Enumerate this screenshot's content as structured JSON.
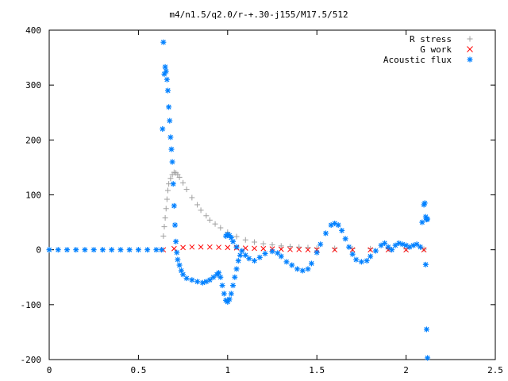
{
  "chart_data": {
    "type": "scatter",
    "title": "m4/n1.5/q2.0/r-+.30-j155/M17.5/512",
    "xlabel": "",
    "ylabel": "",
    "xlim": [
      0,
      2.5
    ],
    "ylim": [
      -200,
      400
    ],
    "xticks": [
      "0",
      "0.5",
      "1",
      "1.5",
      "2",
      "2.5"
    ],
    "yticks": [
      "400",
      "300",
      "200",
      "100",
      "0",
      "-100",
      "-200"
    ],
    "grid": false,
    "legend_position": "top-right",
    "series": [
      {
        "name": "R stress",
        "marker": "+",
        "color": "#a0a0a0",
        "points": [
          [
            0.64,
            25
          ],
          [
            0.645,
            42
          ],
          [
            0.65,
            58
          ],
          [
            0.655,
            75
          ],
          [
            0.66,
            92
          ],
          [
            0.665,
            108
          ],
          [
            0.67,
            120
          ],
          [
            0.68,
            130
          ],
          [
            0.69,
            137
          ],
          [
            0.7,
            141
          ],
          [
            0.71,
            140
          ],
          [
            0.72,
            137
          ],
          [
            0.73,
            132
          ],
          [
            0.75,
            122
          ],
          [
            0.77,
            110
          ],
          [
            0.8,
            95
          ],
          [
            0.83,
            82
          ],
          [
            0.85,
            72
          ],
          [
            0.88,
            62
          ],
          [
            0.9,
            54
          ],
          [
            0.93,
            47
          ],
          [
            0.96,
            40
          ],
          [
            1.0,
            32
          ],
          [
            1.05,
            24
          ],
          [
            1.1,
            18
          ],
          [
            1.15,
            14
          ],
          [
            1.2,
            11
          ],
          [
            1.25,
            9
          ],
          [
            1.3,
            7
          ],
          [
            1.35,
            6
          ],
          [
            1.4,
            5
          ],
          [
            1.45,
            4
          ],
          [
            1.5,
            3
          ],
          [
            1.6,
            2.5
          ],
          [
            1.7,
            2
          ],
          [
            1.8,
            2
          ],
          [
            1.9,
            1.5
          ],
          [
            2.0,
            1.5
          ],
          [
            2.1,
            1
          ]
        ]
      },
      {
        "name": "G work",
        "marker": "x",
        "color": "#ff0000",
        "points": [
          [
            0.64,
            0
          ],
          [
            0.7,
            2
          ],
          [
            0.75,
            4
          ],
          [
            0.8,
            5
          ],
          [
            0.85,
            5
          ],
          [
            0.9,
            5
          ],
          [
            0.95,
            4.5
          ],
          [
            1.0,
            4
          ],
          [
            1.05,
            3.5
          ],
          [
            1.1,
            3
          ],
          [
            1.15,
            2.5
          ],
          [
            1.2,
            2
          ],
          [
            1.25,
            1.5
          ],
          [
            1.3,
            1
          ],
          [
            1.35,
            0.5
          ],
          [
            1.4,
            0.5
          ],
          [
            1.45,
            0
          ],
          [
            1.5,
            0
          ],
          [
            1.6,
            0
          ],
          [
            1.7,
            0
          ],
          [
            1.8,
            0
          ],
          [
            1.9,
            0
          ],
          [
            2.0,
            0
          ],
          [
            2.1,
            0
          ]
        ]
      },
      {
        "name": "Acoustic flux",
        "marker": "*",
        "color": "#0080ff",
        "points": [
          [
            0.0,
            0
          ],
          [
            0.05,
            0
          ],
          [
            0.1,
            0
          ],
          [
            0.15,
            0
          ],
          [
            0.2,
            0
          ],
          [
            0.25,
            0
          ],
          [
            0.3,
            0
          ],
          [
            0.35,
            0
          ],
          [
            0.4,
            0
          ],
          [
            0.45,
            0
          ],
          [
            0.5,
            0
          ],
          [
            0.55,
            0
          ],
          [
            0.6,
            0
          ],
          [
            0.63,
            0
          ],
          [
            0.635,
            220
          ],
          [
            0.64,
            378
          ],
          [
            0.645,
            320
          ],
          [
            0.65,
            333
          ],
          [
            0.655,
            325
          ],
          [
            0.66,
            310
          ],
          [
            0.665,
            290
          ],
          [
            0.67,
            260
          ],
          [
            0.675,
            235
          ],
          [
            0.68,
            205
          ],
          [
            0.685,
            183
          ],
          [
            0.69,
            160
          ],
          [
            0.695,
            120
          ],
          [
            0.7,
            80
          ],
          [
            0.705,
            45
          ],
          [
            0.71,
            15
          ],
          [
            0.715,
            -5
          ],
          [
            0.72,
            -18
          ],
          [
            0.73,
            -28
          ],
          [
            0.74,
            -38
          ],
          [
            0.75,
            -45
          ],
          [
            0.77,
            -52
          ],
          [
            0.8,
            -55
          ],
          [
            0.83,
            -58
          ],
          [
            0.86,
            -60
          ],
          [
            0.88,
            -58
          ],
          [
            0.9,
            -55
          ],
          [
            0.92,
            -50
          ],
          [
            0.94,
            -45
          ],
          [
            0.95,
            -42
          ],
          [
            0.96,
            -50
          ],
          [
            0.97,
            -65
          ],
          [
            0.98,
            -80
          ],
          [
            0.99,
            -92
          ],
          [
            1.0,
            -95
          ],
          [
            1.01,
            -90
          ],
          [
            1.02,
            -80
          ],
          [
            1.03,
            -65
          ],
          [
            1.04,
            -50
          ],
          [
            1.05,
            -35
          ],
          [
            1.06,
            -20
          ],
          [
            1.07,
            -10
          ],
          [
            0.99,
            25
          ],
          [
            1.0,
            28
          ],
          [
            1.01,
            26
          ],
          [
            1.02,
            22
          ],
          [
            1.03,
            15
          ],
          [
            1.05,
            5
          ],
          [
            1.08,
            -2
          ],
          [
            1.1,
            -10
          ],
          [
            1.12,
            -16
          ],
          [
            1.15,
            -20
          ],
          [
            1.18,
            -14
          ],
          [
            1.21,
            -7
          ],
          [
            1.25,
            -3
          ],
          [
            1.28,
            -6
          ],
          [
            1.3,
            -12
          ],
          [
            1.33,
            -22
          ],
          [
            1.36,
            -28
          ],
          [
            1.39,
            -35
          ],
          [
            1.42,
            -38
          ],
          [
            1.45,
            -35
          ],
          [
            1.47,
            -25
          ],
          [
            1.5,
            -5
          ],
          [
            1.52,
            10
          ],
          [
            1.55,
            30
          ],
          [
            1.58,
            45
          ],
          [
            1.6,
            48
          ],
          [
            1.62,
            45
          ],
          [
            1.64,
            35
          ],
          [
            1.66,
            20
          ],
          [
            1.68,
            5
          ],
          [
            1.7,
            -8
          ],
          [
            1.72,
            -18
          ],
          [
            1.75,
            -22
          ],
          [
            1.78,
            -20
          ],
          [
            1.8,
            -12
          ],
          [
            1.83,
            -2
          ],
          [
            1.86,
            8
          ],
          [
            1.88,
            12
          ],
          [
            1.9,
            5
          ],
          [
            1.92,
            0
          ],
          [
            1.94,
            8
          ],
          [
            1.96,
            12
          ],
          [
            1.98,
            10
          ],
          [
            2.0,
            8
          ],
          [
            2.02,
            5
          ],
          [
            2.04,
            8
          ],
          [
            2.06,
            10
          ],
          [
            2.08,
            5
          ],
          [
            2.09,
            50
          ],
          [
            2.1,
            82
          ],
          [
            2.105,
            85
          ],
          [
            2.11,
            60
          ],
          [
            2.115,
            55
          ],
          [
            2.12,
            56
          ],
          [
            2.11,
            -27
          ],
          [
            2.115,
            -145
          ],
          [
            2.12,
            -197
          ]
        ]
      }
    ]
  }
}
